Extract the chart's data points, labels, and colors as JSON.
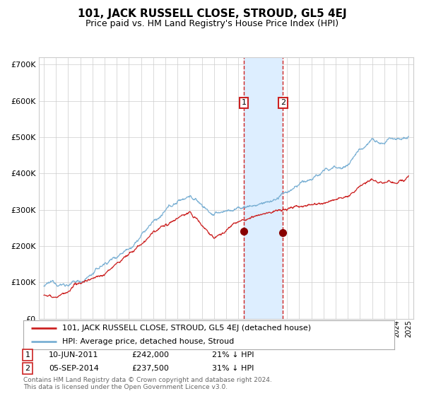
{
  "title": "101, JACK RUSSELL CLOSE, STROUD, GL5 4EJ",
  "subtitle": "Price paid vs. HM Land Registry's House Price Index (HPI)",
  "legend_line1": "101, JACK RUSSELL CLOSE, STROUD, GL5 4EJ (detached house)",
  "legend_line2": "HPI: Average price, detached house, Stroud",
  "annotation1_label": "1",
  "annotation1_date": "10-JUN-2011",
  "annotation1_price": "£242,000",
  "annotation1_hpi": "21% ↓ HPI",
  "annotation2_label": "2",
  "annotation2_date": "05-SEP-2014",
  "annotation2_price": "£237,500",
  "annotation2_hpi": "31% ↓ HPI",
  "hpi_color": "#7ab0d4",
  "price_color": "#cc2222",
  "marker_color": "#880000",
  "vline_color": "#cc2222",
  "shade_color": "#ddeeff",
  "background_color": "#ffffff",
  "grid_color": "#cccccc",
  "footnote_line1": "Contains HM Land Registry data © Crown copyright and database right 2024.",
  "footnote_line2": "This data is licensed under the Open Government Licence v3.0.",
  "ylim": [
    0,
    720000
  ],
  "yticks": [
    0,
    100000,
    200000,
    300000,
    400000,
    500000,
    600000,
    700000
  ],
  "year_start": 1995,
  "year_end": 2025,
  "sale1_year": 2011.44,
  "sale2_year": 2014.67,
  "sale1_price": 242000,
  "sale2_price": 237500
}
